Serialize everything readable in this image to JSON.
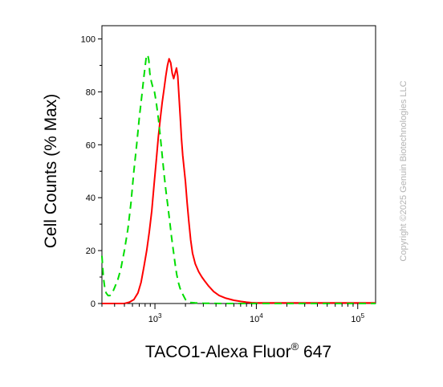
{
  "chart_data": {
    "type": "line",
    "title": "",
    "xlabel": "TACO1-Alexa Fluor",
    "xlabel_superscript": "®",
    "xlabel_suffix": " 647",
    "ylabel": "Cell Counts (% Max)",
    "x_scale": "log",
    "xlim": [
      300,
      150000
    ],
    "ylim": [
      0,
      105
    ],
    "grid": false,
    "legend": "none",
    "x_ticks": [
      {
        "value": 1000,
        "base": "10",
        "exp": "3"
      },
      {
        "value": 10000,
        "base": "10",
        "exp": "4"
      },
      {
        "value": 100000,
        "base": "10",
        "exp": "5"
      }
    ],
    "y_ticks": [
      0,
      20,
      40,
      60,
      80,
      100
    ],
    "series": [
      {
        "color": "#ff0000",
        "style": "solid",
        "x": [
          300,
          400,
          500,
          560,
          620,
          680,
          730,
          780,
          830,
          880,
          930,
          980,
          1030,
          1080,
          1130,
          1180,
          1230,
          1280,
          1330,
          1380,
          1430,
          1480,
          1530,
          1580,
          1630,
          1680,
          1730,
          1780,
          1830,
          1880,
          1940,
          2000,
          2080,
          2160,
          2250,
          2350,
          2500,
          2700,
          2900,
          3100,
          3400,
          3800,
          4300,
          5000,
          6000,
          7000,
          8000,
          9000,
          10000,
          12000,
          15000,
          20000,
          30000,
          50000,
          80000,
          120000,
          150000
        ],
        "y": [
          0,
          0,
          0,
          0.5,
          1.5,
          4,
          8,
          14,
          20,
          27,
          35,
          45,
          54,
          63,
          70,
          76,
          81,
          86,
          90,
          92.5,
          91,
          87,
          85,
          87,
          89,
          86,
          78,
          70,
          62,
          56,
          51,
          46,
          38,
          31,
          24,
          19,
          15,
          12,
          10,
          8.5,
          6.5,
          4.5,
          3,
          2,
          1.2,
          0.8,
          0.5,
          0.3,
          0.2,
          0.2,
          0.2,
          0.2,
          0.2,
          0.2,
          0.2,
          0.2,
          0.2
        ]
      },
      {
        "color": "#00dd00",
        "style": "dashed",
        "x": [
          300,
          310,
          320,
          330,
          345,
          360,
          380,
          400,
          430,
          460,
          500,
          540,
          580,
          620,
          660,
          700,
          740,
          780,
          820,
          850,
          870,
          890,
          920,
          950,
          990,
          1030,
          1080,
          1130,
          1180,
          1230,
          1280,
          1340,
          1400,
          1460,
          1520,
          1580,
          1640,
          1700,
          1760,
          1820,
          1880,
          1940,
          2000,
          2100,
          2250,
          2500,
          3000,
          5000,
          10000,
          30000,
          100000,
          150000
        ],
        "y": [
          18,
          10,
          6,
          4,
          3,
          3,
          4,
          6,
          9,
          13,
          20,
          28,
          38,
          50,
          60,
          70,
          78,
          86,
          93,
          94,
          92,
          87,
          84,
          82,
          80,
          76,
          70,
          63,
          56,
          49,
          43,
          37,
          31,
          25,
          20,
          15,
          11,
          8,
          6,
          4.5,
          3.5,
          2.5,
          1.5,
          0.8,
          0.4,
          0.2,
          0.1,
          0,
          0,
          0,
          0,
          0
        ]
      }
    ]
  },
  "watermark": "Copyright ©2025 Genuin Biotechnologies LLC"
}
